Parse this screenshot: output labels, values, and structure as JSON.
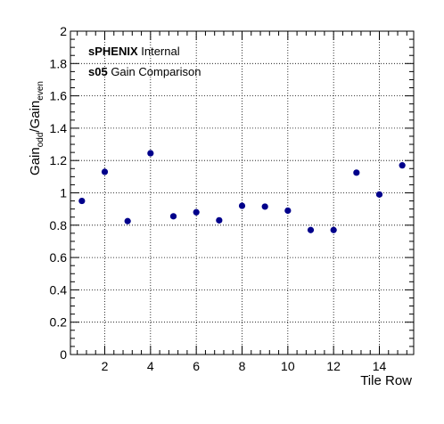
{
  "chart_data": {
    "type": "scatter",
    "title": "",
    "xlabel": "Tile Row",
    "ylabel": {
      "base": "Gain",
      "sub1": "odd",
      "sep": "/Gain",
      "sub2": "even"
    },
    "xlim": [
      0.5,
      15.5
    ],
    "ylim": [
      0,
      2
    ],
    "xticks": [
      2,
      4,
      6,
      8,
      10,
      12,
      14
    ],
    "yticks": [
      0,
      0.2,
      0.4,
      0.6,
      0.8,
      1,
      1.2,
      1.4,
      1.6,
      1.8,
      2
    ],
    "ytick_labels": [
      "0",
      "0.2",
      "0.4",
      "0.6",
      "0.8",
      "1",
      "1.2",
      "1.4",
      "1.6",
      "1.8",
      "2"
    ],
    "grid": true,
    "marker_color": "#00008b",
    "x": [
      1,
      2,
      3,
      4,
      5,
      6,
      7,
      8,
      9,
      10,
      11,
      12,
      13,
      14,
      15
    ],
    "y": [
      0.95,
      1.13,
      0.825,
      1.245,
      0.855,
      0.88,
      0.83,
      0.92,
      0.915,
      0.89,
      0.77,
      0.77,
      1.125,
      0.99,
      1.17
    ],
    "annotations": [
      {
        "bold": "sPHENIX",
        "text": " Internal"
      },
      {
        "bold": "s05",
        "text": " Gain Comparison"
      }
    ]
  }
}
